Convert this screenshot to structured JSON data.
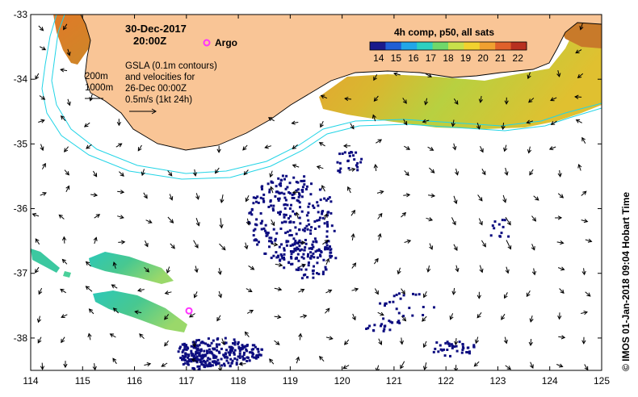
{
  "title": {
    "date": "30-Dec-2017",
    "time": "20:00Z"
  },
  "argo_label": "Argo",
  "colorbar": {
    "title": "4h comp, p50, all sats",
    "ticks": [
      "14",
      "15",
      "16",
      "17",
      "18",
      "19",
      "20",
      "21",
      "22"
    ],
    "range": [
      13.5,
      22.5
    ],
    "colors": [
      "#1a1a8c",
      "#1f5fd6",
      "#22a6e8",
      "#2dd0c0",
      "#6fd86a",
      "#c8e04a",
      "#f2d22e",
      "#f0a030",
      "#e0602a",
      "#b83020"
    ]
  },
  "annotation": {
    "line1": "GSLA (0.1m contours)",
    "line2": "and velocities for",
    "line3": "26-Dec 00:00Z",
    "line4": "0.5m/s (1kt 24h)"
  },
  "depth_labels": {
    "d200": "200m",
    "d1000": "1000m"
  },
  "x_ticks": [
    "114",
    "115",
    "116",
    "117",
    "118",
    "119",
    "120",
    "121",
    "122",
    "123",
    "124",
    "125"
  ],
  "y_ticks": [
    "-33",
    "-34",
    "-35",
    "-36",
    "-37",
    "-38"
  ],
  "x_range": [
    114,
    125
  ],
  "y_range": [
    -38.5,
    -33
  ],
  "argo": {
    "lon": 117.05,
    "lat": -37.58
  },
  "side_label": "©  IMOS 01-Jan-2018 09:04 Hobart Time",
  "colors": {
    "land": "#f9c596",
    "coast": "#000000",
    "bathy": "#22d4e6",
    "argo": "#ff33ff",
    "cloud_blue": "#0d0d80"
  }
}
